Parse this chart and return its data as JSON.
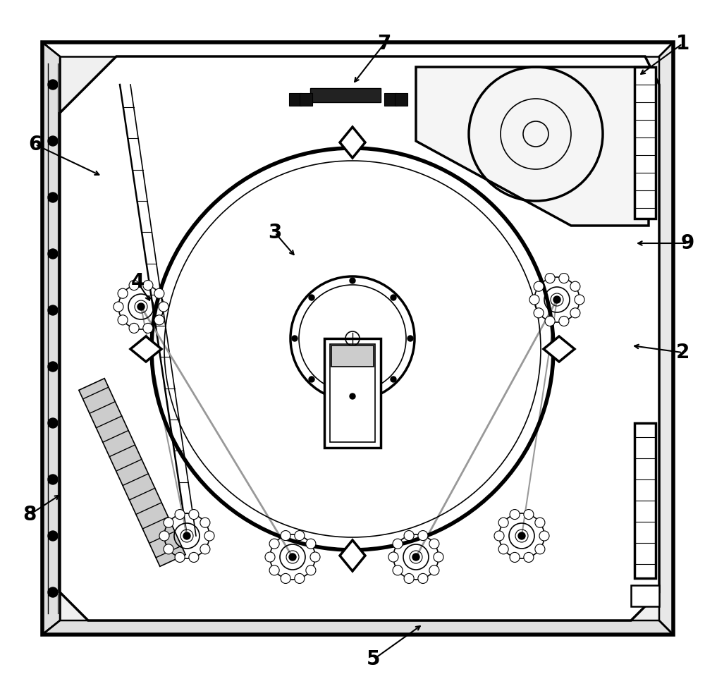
{
  "bg_color": "#ffffff",
  "line_color": "#000000",
  "gray_line_color": "#999999",
  "figure_width": 10.0,
  "figure_height": 9.63,
  "dpi": 100
}
